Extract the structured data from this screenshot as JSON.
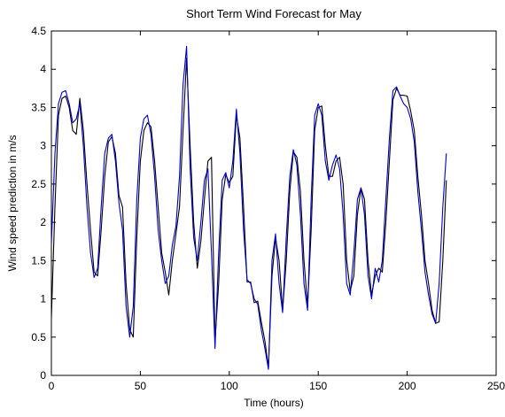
{
  "chart_data": {
    "type": "line",
    "title": "Short Term Wind Forecast for May",
    "xlabel": "Time (hours)",
    "ylabel": "Wind speed prediction in m/s",
    "xlim": [
      0,
      250
    ],
    "ylim": [
      0,
      4.5
    ],
    "xticks": [
      0,
      50,
      100,
      150,
      200,
      250
    ],
    "yticks": [
      0,
      0.5,
      1,
      1.5,
      2,
      2.5,
      3,
      3.5,
      4,
      4.5
    ],
    "grid": false,
    "legend": "none",
    "series": [
      {
        "color": "#000000",
        "points": [
          [
            0,
            0.75
          ],
          [
            2,
            2.2
          ],
          [
            4,
            3.4
          ],
          [
            6,
            3.62
          ],
          [
            8,
            3.65
          ],
          [
            10,
            3.5
          ],
          [
            12,
            3.2
          ],
          [
            14,
            3.15
          ],
          [
            16,
            3.62
          ],
          [
            18,
            3.2
          ],
          [
            20,
            2.5
          ],
          [
            22,
            1.9
          ],
          [
            24,
            1.35
          ],
          [
            26,
            1.3
          ],
          [
            28,
            1.9
          ],
          [
            30,
            2.6
          ],
          [
            32,
            3.05
          ],
          [
            34,
            3.12
          ],
          [
            36,
            2.9
          ],
          [
            38,
            2.35
          ],
          [
            40,
            2.2
          ],
          [
            42,
            1.2
          ],
          [
            44,
            0.6
          ],
          [
            46,
            0.5
          ],
          [
            48,
            1.8
          ],
          [
            50,
            2.8
          ],
          [
            52,
            3.2
          ],
          [
            54,
            3.3
          ],
          [
            56,
            3.25
          ],
          [
            58,
            2.8
          ],
          [
            60,
            2.2
          ],
          [
            62,
            1.6
          ],
          [
            64,
            1.35
          ],
          [
            66,
            1.05
          ],
          [
            68,
            1.5
          ],
          [
            70,
            1.85
          ],
          [
            72,
            2.2
          ],
          [
            74,
            3.2
          ],
          [
            76,
            4.15
          ],
          [
            78,
            3.0
          ],
          [
            80,
            2.0
          ],
          [
            82,
            1.4
          ],
          [
            84,
            1.75
          ],
          [
            86,
            2.3
          ],
          [
            88,
            2.8
          ],
          [
            90,
            2.85
          ],
          [
            92,
            0.45
          ],
          [
            94,
            1.2
          ],
          [
            96,
            2.3
          ],
          [
            98,
            2.62
          ],
          [
            100,
            2.52
          ],
          [
            102,
            2.6
          ],
          [
            104,
            3.4
          ],
          [
            106,
            3.1
          ],
          [
            108,
            2.2
          ],
          [
            110,
            1.22
          ],
          [
            112,
            1.22
          ],
          [
            114,
            0.95
          ],
          [
            116,
            0.97
          ],
          [
            118,
            0.7
          ],
          [
            120,
            0.45
          ],
          [
            122,
            0.1
          ],
          [
            124,
            1.3
          ],
          [
            126,
            1.8
          ],
          [
            128,
            1.5
          ],
          [
            130,
            0.85
          ],
          [
            132,
            1.5
          ],
          [
            134,
            2.4
          ],
          [
            136,
            2.92
          ],
          [
            138,
            2.85
          ],
          [
            140,
            2.4
          ],
          [
            142,
            1.5
          ],
          [
            144,
            0.9
          ],
          [
            146,
            1.9
          ],
          [
            148,
            3.2
          ],
          [
            150,
            3.5
          ],
          [
            152,
            3.52
          ],
          [
            154,
            3.0
          ],
          [
            156,
            2.6
          ],
          [
            158,
            2.6
          ],
          [
            160,
            2.8
          ],
          [
            162,
            2.85
          ],
          [
            164,
            2.5
          ],
          [
            166,
            1.5
          ],
          [
            168,
            1.1
          ],
          [
            170,
            1.3
          ],
          [
            172,
            2.1
          ],
          [
            174,
            2.45
          ],
          [
            176,
            2.3
          ],
          [
            178,
            1.5
          ],
          [
            180,
            1.05
          ],
          [
            182,
            1.3
          ],
          [
            184,
            1.4
          ],
          [
            186,
            1.35
          ],
          [
            188,
            2.0
          ],
          [
            190,
            2.8
          ],
          [
            192,
            3.6
          ],
          [
            194,
            3.75
          ],
          [
            196,
            3.66
          ],
          [
            198,
            3.66
          ],
          [
            200,
            3.65
          ],
          [
            202,
            3.45
          ],
          [
            204,
            3.2
          ],
          [
            206,
            2.6
          ],
          [
            208,
            2.1
          ],
          [
            210,
            1.5
          ],
          [
            212,
            1.2
          ],
          [
            214,
            0.85
          ],
          [
            216,
            0.68
          ],
          [
            218,
            0.7
          ],
          [
            220,
            1.5
          ],
          [
            222,
            2.55
          ]
        ]
      },
      {
        "color": "#0000cc",
        "points": [
          [
            0,
            1.72
          ],
          [
            2,
            2.9
          ],
          [
            4,
            3.55
          ],
          [
            6,
            3.7
          ],
          [
            8,
            3.72
          ],
          [
            10,
            3.55
          ],
          [
            12,
            3.3
          ],
          [
            14,
            3.35
          ],
          [
            16,
            3.55
          ],
          [
            18,
            3.0
          ],
          [
            20,
            2.2
          ],
          [
            22,
            1.6
          ],
          [
            24,
            1.28
          ],
          [
            26,
            1.4
          ],
          [
            28,
            2.2
          ],
          [
            30,
            2.9
          ],
          [
            32,
            3.1
          ],
          [
            34,
            3.15
          ],
          [
            36,
            2.8
          ],
          [
            38,
            2.25
          ],
          [
            40,
            1.9
          ],
          [
            42,
            0.9
          ],
          [
            44,
            0.5
          ],
          [
            46,
            0.9
          ],
          [
            48,
            2.3
          ],
          [
            50,
            3.1
          ],
          [
            52,
            3.35
          ],
          [
            54,
            3.4
          ],
          [
            56,
            3.15
          ],
          [
            58,
            2.6
          ],
          [
            60,
            1.9
          ],
          [
            62,
            1.5
          ],
          [
            64,
            1.2
          ],
          [
            66,
            1.3
          ],
          [
            68,
            1.7
          ],
          [
            70,
            1.95
          ],
          [
            72,
            2.6
          ],
          [
            74,
            3.8
          ],
          [
            76,
            4.3
          ],
          [
            78,
            2.7
          ],
          [
            80,
            1.8
          ],
          [
            82,
            1.5
          ],
          [
            84,
            2.0
          ],
          [
            86,
            2.55
          ],
          [
            88,
            2.7
          ],
          [
            90,
            1.6
          ],
          [
            92,
            0.35
          ],
          [
            94,
            1.6
          ],
          [
            96,
            2.55
          ],
          [
            98,
            2.65
          ],
          [
            100,
            2.45
          ],
          [
            102,
            2.8
          ],
          [
            104,
            3.48
          ],
          [
            106,
            2.9
          ],
          [
            108,
            1.9
          ],
          [
            110,
            1.25
          ],
          [
            112,
            1.2
          ],
          [
            114,
            1.0
          ],
          [
            116,
            0.93
          ],
          [
            118,
            0.6
          ],
          [
            120,
            0.35
          ],
          [
            122,
            0.08
          ],
          [
            124,
            1.5
          ],
          [
            126,
            1.85
          ],
          [
            128,
            1.2
          ],
          [
            130,
            0.82
          ],
          [
            132,
            1.8
          ],
          [
            134,
            2.6
          ],
          [
            136,
            2.95
          ],
          [
            138,
            2.75
          ],
          [
            140,
            2.1
          ],
          [
            142,
            1.2
          ],
          [
            144,
            0.85
          ],
          [
            146,
            2.3
          ],
          [
            148,
            3.4
          ],
          [
            150,
            3.55
          ],
          [
            152,
            3.4
          ],
          [
            154,
            2.8
          ],
          [
            156,
            2.55
          ],
          [
            158,
            2.75
          ],
          [
            160,
            2.88
          ],
          [
            162,
            2.7
          ],
          [
            164,
            2.1
          ],
          [
            166,
            1.2
          ],
          [
            168,
            1.05
          ],
          [
            170,
            1.6
          ],
          [
            172,
            2.3
          ],
          [
            174,
            2.45
          ],
          [
            176,
            2.1
          ],
          [
            178,
            1.3
          ],
          [
            180,
            1.0
          ],
          [
            182,
            1.4
          ],
          [
            184,
            1.22
          ],
          [
            186,
            1.5
          ],
          [
            188,
            2.3
          ],
          [
            190,
            3.1
          ],
          [
            192,
            3.72
          ],
          [
            194,
            3.77
          ],
          [
            196,
            3.65
          ],
          [
            198,
            3.55
          ],
          [
            200,
            3.5
          ],
          [
            202,
            3.35
          ],
          [
            204,
            3.05
          ],
          [
            206,
            2.4
          ],
          [
            208,
            1.9
          ],
          [
            210,
            1.35
          ],
          [
            212,
            1.05
          ],
          [
            214,
            0.8
          ],
          [
            216,
            0.68
          ],
          [
            218,
            1.2
          ],
          [
            220,
            2.2
          ],
          [
            222,
            2.9
          ]
        ]
      }
    ]
  }
}
